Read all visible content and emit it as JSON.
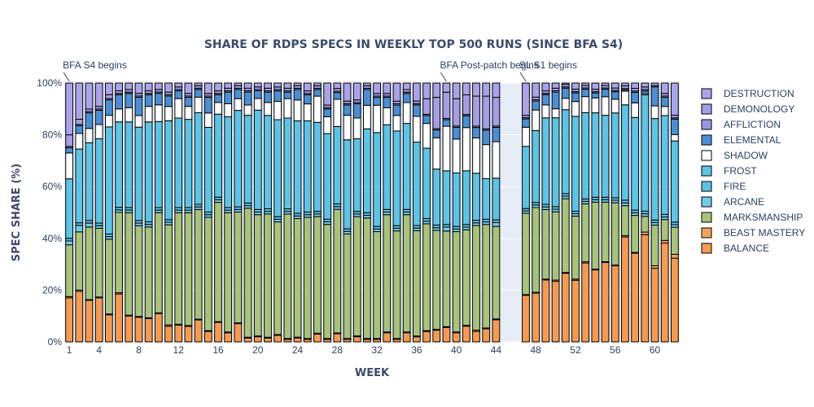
{
  "chart_data": {
    "type": "bar",
    "stacked": true,
    "title": "SHARE OF RDPS SPECS IN WEEKLY TOP 500 RUNS (SINCE BFA S4)",
    "xlabel": "WEEK",
    "ylabel": "SPEC SHARE (%)",
    "ylim": [
      0,
      100
    ],
    "y_ticks": [
      "0%",
      "20%",
      "40%",
      "60%",
      "80%",
      "100%"
    ],
    "x_ticks": [
      1,
      4,
      8,
      12,
      16,
      20,
      24,
      28,
      32,
      36,
      40,
      44,
      48,
      52,
      56,
      60
    ],
    "gap_weeks": [
      45,
      46
    ],
    "legend_position": "right",
    "annotations": [
      {
        "text": "BFA S4 begins",
        "week": 1
      },
      {
        "text": "BFA Post-patch begins",
        "week": 39
      },
      {
        "text": "SL S1 begins",
        "week": 47
      }
    ],
    "x": [
      1,
      2,
      3,
      4,
      5,
      6,
      7,
      8,
      9,
      10,
      11,
      12,
      13,
      14,
      15,
      16,
      17,
      18,
      19,
      20,
      21,
      22,
      23,
      24,
      25,
      26,
      27,
      28,
      29,
      30,
      31,
      32,
      33,
      34,
      35,
      36,
      37,
      38,
      39,
      40,
      41,
      42,
      43,
      44,
      47,
      48,
      49,
      50,
      51,
      52,
      53,
      54,
      55,
      56,
      57,
      58,
      59,
      60,
      61,
      62
    ],
    "series": [
      {
        "name": "BALANCE",
        "color": "#f79a4f",
        "values": [
          17,
          19.5,
          16,
          17,
          10.5,
          18.5,
          10,
          9.5,
          9,
          11,
          6,
          6.5,
          6,
          8.5,
          4,
          7.5,
          3.5,
          7,
          1.5,
          2,
          1.5,
          2.5,
          1,
          1.5,
          1,
          3,
          1,
          3,
          1,
          2,
          1,
          1,
          3.5,
          1,
          3.5,
          2,
          4,
          4.5,
          5.5,
          3.5,
          6,
          4,
          5,
          8.5,
          19.5,
          19,
          24,
          23.5,
          27,
          25,
          32,
          29,
          32,
          30.5,
          38.5,
          33.5,
          41,
          29,
          38,
          32.5
        ]
      },
      {
        "name": "BEAST MASTERY",
        "color": "#f4a25a",
        "values": [
          0.5,
          0.5,
          0.3,
          0.3,
          0.3,
          0.5,
          0.3,
          0.3,
          0.3,
          0.3,
          0.5,
          0.3,
          0.3,
          0.3,
          0.3,
          0.3,
          0.3,
          0.3,
          0.3,
          0.3,
          0.3,
          0.3,
          0.3,
          0.3,
          0.3,
          0.3,
          0.3,
          0.3,
          0.3,
          0.3,
          0.3,
          0.3,
          0.3,
          0.3,
          0.3,
          0.3,
          0.3,
          0.3,
          0.3,
          0.3,
          0.3,
          0.5,
          0.3,
          0.3,
          0.3,
          0.3,
          0.3,
          0.5,
          0.3,
          0.5,
          0.5,
          0.3,
          0.3,
          0.3,
          0.5,
          0.3,
          1,
          1,
          1,
          1.5
        ]
      },
      {
        "name": "MARKSMANSHIP",
        "color": "#a7c47a",
        "values": [
          20,
          22.5,
          28,
          26.5,
          29,
          31,
          39.5,
          35,
          35,
          39,
          38.5,
          43,
          43.5,
          42.5,
          43.5,
          46,
          46,
          42.5,
          50,
          47,
          47.5,
          43,
          48,
          45.5,
          46.5,
          44.5,
          44,
          45.5,
          40.5,
          46,
          46,
          41,
          45,
          41.5,
          45,
          41,
          41,
          38,
          36.5,
          38.5,
          36.5,
          40,
          39.5,
          35.5,
          34,
          33,
          27,
          26.5,
          29,
          25.5,
          23.5,
          27,
          24,
          25,
          11,
          14,
          6,
          16,
          8,
          10.5
        ]
      },
      {
        "name": "ARCANE",
        "color": "#6fcde8",
        "values": [
          1.5,
          2.5,
          1.5,
          1,
          1,
          1,
          1,
          1,
          1,
          1,
          1,
          1,
          1,
          1,
          1,
          1,
          1,
          1,
          1,
          1,
          1,
          1,
          1,
          1,
          1,
          1,
          1,
          1,
          1,
          1,
          1,
          1,
          1,
          1,
          1,
          1,
          1,
          1,
          1.5,
          1,
          1,
          1,
          1,
          1.5,
          1,
          1,
          1,
          1,
          1,
          1,
          1,
          1,
          1,
          1,
          1,
          1,
          1,
          1,
          1,
          1
        ]
      },
      {
        "name": "FIRE",
        "color": "#5bc3e3",
        "values": [
          1,
          1,
          1,
          1,
          1,
          1,
          1,
          1,
          1,
          1,
          1,
          1,
          1,
          1,
          1,
          1,
          1,
          1,
          1,
          1,
          1,
          1,
          1,
          1,
          1,
          1,
          1,
          1,
          1,
          1,
          1,
          1,
          1,
          1,
          1,
          1,
          1,
          1,
          1,
          1,
          1,
          1,
          1,
          1,
          1,
          1,
          1,
          1,
          1,
          1,
          1,
          1,
          1,
          1,
          1,
          1,
          1,
          1,
          1,
          1
        ]
      },
      {
        "name": "FROST",
        "color": "#5cc4e6",
        "values": [
          23,
          28.5,
          30,
          32.5,
          41.5,
          33,
          33,
          36,
          38.5,
          33.5,
          38,
          34.5,
          34,
          35.5,
          32.5,
          32,
          35,
          37,
          34,
          38.5,
          36,
          37,
          35,
          35.5,
          35,
          34,
          33,
          28.5,
          34.5,
          28,
          32,
          36,
          32.5,
          36.5,
          33,
          32.5,
          27,
          21.5,
          20.5,
          20.5,
          20.5,
          18,
          15.5,
          16,
          26,
          28,
          33.5,
          34.5,
          33,
          38.5,
          35,
          34,
          33,
          34,
          35,
          35,
          44.5,
          40,
          38,
          31.5
        ]
      },
      {
        "name": "SHADOW",
        "color": "#ffffff",
        "values": [
          10,
          6,
          5.5,
          5.5,
          4.5,
          5,
          5.5,
          4.5,
          6,
          6.5,
          5.5,
          7.5,
          5,
          6,
          5.5,
          4.5,
          5,
          4.5,
          4,
          4.5,
          5,
          7,
          7.5,
          8,
          6.5,
          10,
          6.5,
          10,
          9.5,
          8,
          9,
          10.5,
          6.5,
          6,
          8,
          10,
          9.5,
          12,
          17,
          13,
          16.5,
          13.5,
          13,
          14,
          8,
          8,
          5,
          3.5,
          4.5,
          6,
          6.5,
          6,
          7.5,
          5.5,
          5,
          5.5,
          0.5,
          5,
          3.5,
          2.5
        ]
      },
      {
        "name": "ELEMENTAL",
        "color": "#4a8fd6",
        "values": [
          2,
          3,
          6,
          5.5,
          6,
          5.5,
          5.5,
          7,
          4.5,
          4.5,
          4,
          3,
          3.5,
          3,
          6,
          3,
          4.5,
          3.5,
          5,
          3,
          4,
          4,
          2.5,
          4,
          3.5,
          2.5,
          3,
          2.5,
          4,
          5.5,
          6,
          3,
          4,
          4,
          3.5,
          4.5,
          3,
          3,
          2.5,
          4.5,
          4.5,
          4,
          5.5,
          5.5,
          3.5,
          3.5,
          4,
          6.5,
          4,
          3.5,
          3,
          2,
          3,
          3,
          0.5,
          4,
          1,
          7.5,
          3.5,
          6
        ]
      },
      {
        "name": "AFFLICTION",
        "color": "#9e96e2",
        "values": [
          0.5,
          0.5,
          0.5,
          0.5,
          0.5,
          0.5,
          0.5,
          0.5,
          0.5,
          0.5,
          0.5,
          0.5,
          0.5,
          0.5,
          0.5,
          0.5,
          0.5,
          0.5,
          0.5,
          0.5,
          0.5,
          0.5,
          0.5,
          0.5,
          0.5,
          0.5,
          0.5,
          0.5,
          0.5,
          0.5,
          0.5,
          0.5,
          0.5,
          0.5,
          0.5,
          0.5,
          0.5,
          0.5,
          0.5,
          0.5,
          0.5,
          0.5,
          0.5,
          0.5,
          0.5,
          0.5,
          0.5,
          0.5,
          0.5,
          0.5,
          0.5,
          0.5,
          0.5,
          0.5,
          0.5,
          0.5,
          0.5,
          0.5,
          0.5,
          0.5
        ]
      },
      {
        "name": "DEMONOLOGY",
        "color": "#a59de6",
        "values": [
          4.5,
          2,
          1,
          1,
          1.5,
          1,
          1,
          1,
          1,
          1,
          1,
          1,
          1,
          1,
          1,
          1,
          1,
          1,
          1,
          1,
          1,
          1,
          1,
          1,
          1,
          1,
          1,
          1,
          1,
          1,
          1,
          1,
          1,
          1,
          1,
          1,
          6,
          12,
          10,
          10.5,
          7.5,
          11.5,
          12.5,
          11,
          1,
          1,
          1,
          1,
          1,
          1,
          1,
          1,
          1,
          1,
          1,
          1,
          1,
          1,
          1,
          1
        ]
      },
      {
        "name": "DESTRUCTION",
        "color": "#aba3ea",
        "values": [
          20,
          14,
          10,
          9,
          4.5,
          3,
          2.5,
          4,
          3,
          2.5,
          3.5,
          1.5,
          4,
          1,
          4,
          3,
          2,
          1,
          2,
          1.5,
          2,
          1.5,
          2,
          1,
          3,
          1,
          8.5,
          2,
          7,
          6.5,
          1,
          4,
          4,
          7,
          2.5,
          7,
          6,
          5.5,
          3.5,
          6,
          4.5,
          5,
          5,
          5.5,
          13.5,
          5.5,
          3,
          2,
          0.5,
          2.5,
          1,
          2.5,
          1,
          2,
          1,
          2,
          1.5,
          0,
          4,
          12.5
        ]
      }
    ]
  }
}
